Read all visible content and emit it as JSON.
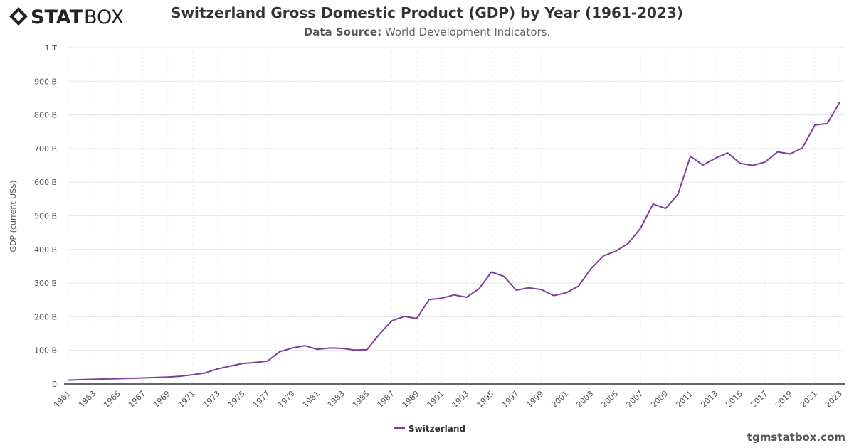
{
  "brand": {
    "logo_text_bold": "STAT",
    "logo_text_light": "BOX",
    "credit": "tgmstatbox.com"
  },
  "header": {
    "title": "Switzerland Gross Domestic Product (GDP) by Year (1961-2023)",
    "subtitle_label": "Data Source:",
    "subtitle_value": "World Development Indicators."
  },
  "colors": {
    "series": "#7b3f98",
    "grid": "#e6e6e6",
    "axis": "#333333"
  },
  "chart_data": {
    "type": "line",
    "title": "Switzerland Gross Domestic Product (GDP) by Year (1961-2023)",
    "xlabel": "",
    "ylabel": "GDP (current US$)",
    "ylim": [
      0,
      1000
    ],
    "y_unit": "billion US$",
    "y_ticks": [
      0,
      100,
      200,
      300,
      400,
      500,
      600,
      700,
      800,
      900,
      1000
    ],
    "y_tick_labels": [
      "0",
      "100 B",
      "200 B",
      "300 B",
      "400 B",
      "500 B",
      "600 B",
      "700 B",
      "800 B",
      "900 B",
      "1 T"
    ],
    "x_tick_labels": [
      "1961",
      "1963",
      "1965",
      "1967",
      "1969",
      "1971",
      "1973",
      "1975",
      "1977",
      "1979",
      "1981",
      "1983",
      "1985",
      "1987",
      "1989",
      "1991",
      "1993",
      "1995",
      "1997",
      "1999",
      "2001",
      "2003",
      "2005",
      "2007",
      "2009",
      "2011",
      "2013",
      "2015",
      "2017",
      "2019",
      "2021",
      "2023"
    ],
    "grid": true,
    "legend_position": "bottom-center",
    "series": [
      {
        "name": "Switzerland",
        "x": [
          1961,
          1962,
          1963,
          1964,
          1965,
          1966,
          1967,
          1968,
          1969,
          1970,
          1971,
          1972,
          1973,
          1974,
          1975,
          1976,
          1977,
          1978,
          1979,
          1980,
          1981,
          1982,
          1983,
          1984,
          1985,
          1986,
          1987,
          1988,
          1989,
          1990,
          1991,
          1992,
          1993,
          1994,
          1995,
          1996,
          1997,
          1998,
          1999,
          2000,
          2001,
          2002,
          2003,
          2004,
          2005,
          2006,
          2007,
          2008,
          2009,
          2010,
          2011,
          2012,
          2013,
          2014,
          2015,
          2016,
          2017,
          2018,
          2019,
          2020,
          2021,
          2022,
          2023
        ],
        "values": [
          11.5,
          12.8,
          13.9,
          15.0,
          15.9,
          16.9,
          18.0,
          19.3,
          20.7,
          23.0,
          27.5,
          33.0,
          45,
          53,
          61,
          64,
          68,
          96,
          107,
          114,
          103,
          107,
          106,
          101,
          102,
          148,
          188,
          201,
          195,
          251,
          255,
          265,
          258,
          283,
          333,
          320,
          279,
          286,
          281,
          263,
          271,
          291,
          343,
          381,
          395,
          418,
          464,
          535,
          522,
          564,
          677,
          651,
          671,
          687,
          656,
          650,
          660,
          690,
          684,
          702,
          770,
          774,
          838
        ]
      }
    ]
  }
}
